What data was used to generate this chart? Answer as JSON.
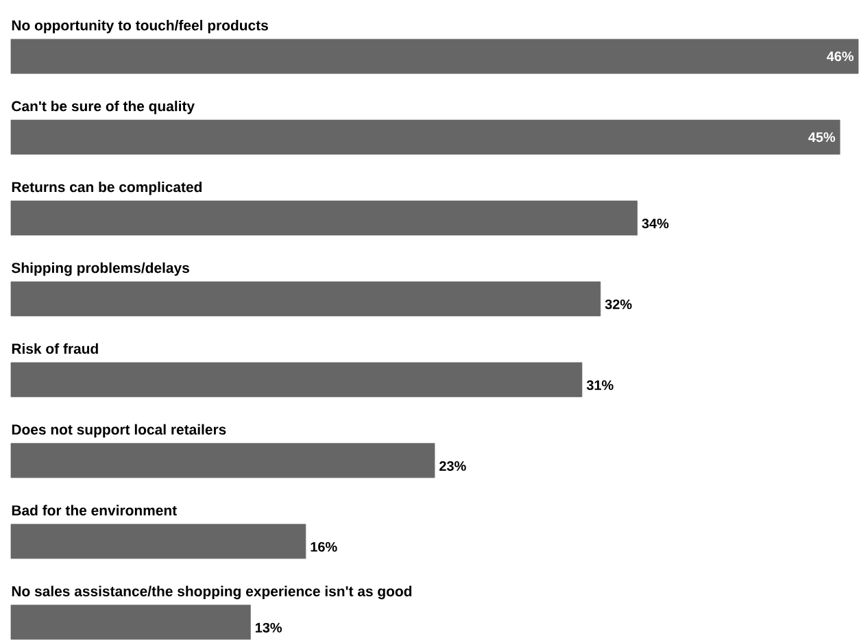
{
  "chart_data": {
    "type": "bar",
    "orientation": "horizontal",
    "categories": [
      "No opportunity to touch/feel products",
      "Can't be sure of the quality",
      "Returns can be complicated",
      "Shipping problems/delays",
      "Risk of fraud",
      "Does not support local retailers",
      "Bad for the environment",
      "No sales assistance/the shopping experience isn't as good"
    ],
    "values": [
      46,
      45,
      34,
      32,
      31,
      23,
      16,
      13
    ],
    "value_labels": [
      "46%",
      "45%",
      "34%",
      "32%",
      "31%",
      "23%",
      "16%",
      "13%"
    ],
    "color": "#666666"
  }
}
